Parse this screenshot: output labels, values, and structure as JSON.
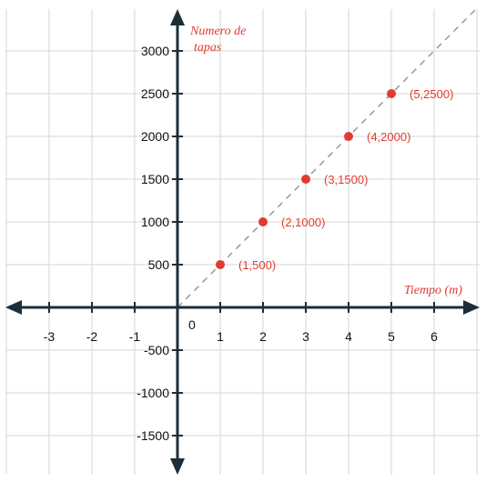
{
  "chart_data": {
    "type": "scatter",
    "title": "",
    "xlabel": "Tiempo  (m)",
    "ylabel_lines": [
      "Numero de",
      "tapas"
    ],
    "origin_label": "0",
    "x_ticks": [
      -3,
      -2,
      -1,
      1,
      2,
      3,
      4,
      5,
      6
    ],
    "y_ticks": [
      -1500,
      -1000,
      -500,
      500,
      1000,
      1500,
      2000,
      2500,
      3000
    ],
    "xlim": [
      -4,
      7
    ],
    "ylim": [
      -1800,
      3400
    ],
    "grid": true,
    "points": [
      {
        "x": 1,
        "y": 500,
        "label": "(1,500)"
      },
      {
        "x": 2,
        "y": 1000,
        "label": "(2,1000)"
      },
      {
        "x": 3,
        "y": 1500,
        "label": "(3,1500)"
      },
      {
        "x": 4,
        "y": 2000,
        "label": "(4,2000)"
      },
      {
        "x": 5,
        "y": 2500,
        "label": "(5,2500)"
      }
    ],
    "trend_line": {
      "style": "dashed",
      "from": [
        0,
        0
      ],
      "to": [
        7,
        3500
      ]
    }
  },
  "colors": {
    "point": "#e03c31",
    "label": "#e03c31",
    "axis": "#1c2e3a",
    "grid": "#d6d6d6",
    "trend": "#999999"
  }
}
